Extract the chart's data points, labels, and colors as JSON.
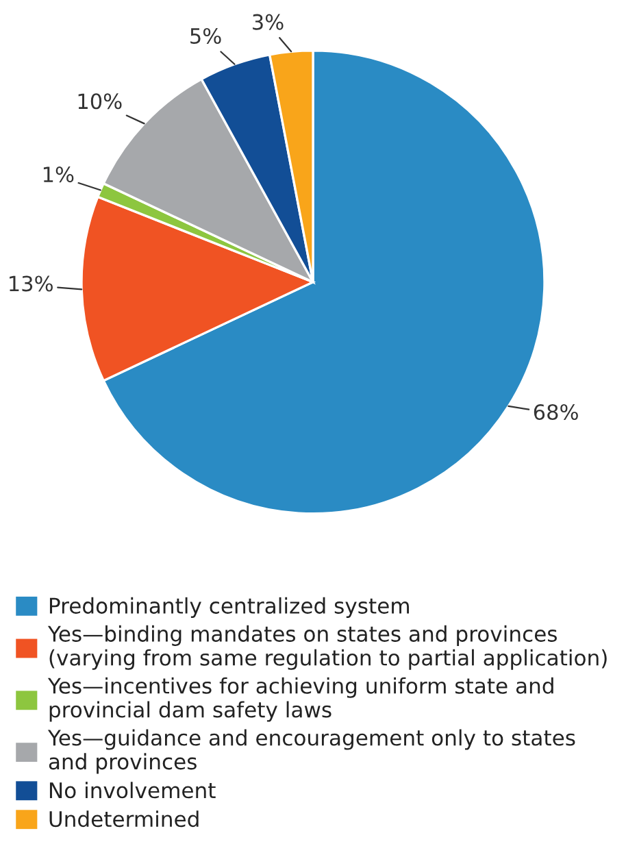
{
  "chart_data": {
    "type": "pie",
    "categories": [
      "Predominantly centralized system",
      "Yes—binding mandates on states and provinces\n(varying from same regulation to partial application)",
      "Yes—incentives for achieving uniform state and\nprovincial dam safety laws",
      "Yes—guidance and encouragement only to states\nand provinces",
      "No involvement",
      "Undetermined"
    ],
    "values": [
      68,
      13,
      1,
      10,
      5,
      3
    ],
    "colors": [
      "#2a8bc4",
      "#f05323",
      "#8dc63f",
      "#a6a8ab",
      "#124e96",
      "#f9a51a"
    ],
    "value_labels": [
      "68%",
      "13%",
      "1%",
      "10%",
      "5%",
      "3%"
    ],
    "legend": "bottom"
  }
}
